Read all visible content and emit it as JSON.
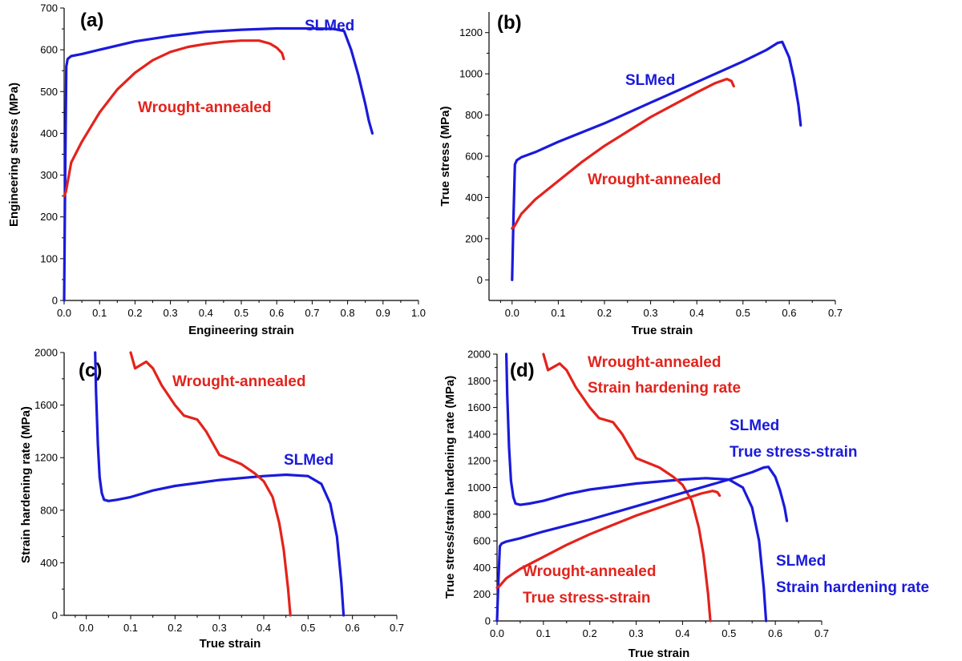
{
  "colors": {
    "slmed": "#1a1adb",
    "wrought": "#e3231c",
    "axis": "#000000"
  },
  "chart_data": [
    {
      "id": "a",
      "type": "line",
      "panel_label": "(a)",
      "xlabel": "Engineering strain",
      "ylabel": "Engineering stress (MPa)",
      "xlim": [
        0.0,
        1.0
      ],
      "ylim": [
        0,
        700
      ],
      "xticks": [
        "0.0",
        "0.1",
        "0.2",
        "0.3",
        "0.4",
        "0.5",
        "0.6",
        "0.7",
        "0.8",
        "0.9",
        "1.0"
      ],
      "yticks": [
        "0",
        "100",
        "200",
        "300",
        "400",
        "500",
        "600",
        "700"
      ],
      "series": [
        {
          "key": "slmed",
          "x": [
            0,
            0.003,
            0.006,
            0.01,
            0.02,
            0.05,
            0.1,
            0.2,
            0.3,
            0.4,
            0.5,
            0.6,
            0.7,
            0.76,
            0.79,
            0.81,
            0.83,
            0.85,
            0.86,
            0.87
          ],
          "y": [
            0,
            300,
            560,
            578,
            585,
            590,
            600,
            620,
            633,
            643,
            648,
            651,
            651,
            650,
            645,
            600,
            540,
            470,
            430,
            400
          ]
        },
        {
          "key": "wrought",
          "x": [
            0,
            0.005,
            0.02,
            0.05,
            0.1,
            0.15,
            0.2,
            0.25,
            0.3,
            0.35,
            0.4,
            0.45,
            0.5,
            0.55,
            0.58,
            0.6,
            0.615,
            0.62
          ],
          "y": [
            250,
            260,
            330,
            380,
            450,
            505,
            545,
            575,
            595,
            607,
            614,
            619,
            622,
            622,
            615,
            605,
            592,
            578
          ]
        }
      ],
      "annotations": [
        {
          "series": "slmed",
          "lines": [
            "SLMed"
          ]
        },
        {
          "series": "wrought",
          "lines": [
            "Wrought-annealed"
          ]
        }
      ]
    },
    {
      "id": "b",
      "type": "line",
      "panel_label": "(b)",
      "xlabel": "True strain",
      "ylabel": "True stress (MPa)",
      "xlim": [
        -0.05,
        0.7
      ],
      "ylim": [
        -100,
        1300
      ],
      "xticks": [
        "0.0",
        "0.1",
        "0.2",
        "0.3",
        "0.4",
        "0.5",
        "0.6",
        "0.7"
      ],
      "yticks": [
        "0",
        "200",
        "400",
        "600",
        "800",
        "1000",
        "1200"
      ],
      "series": [
        {
          "key": "slmed",
          "x": [
            0,
            0.003,
            0.006,
            0.01,
            0.02,
            0.05,
            0.1,
            0.2,
            0.3,
            0.4,
            0.5,
            0.55,
            0.575,
            0.585,
            0.6,
            0.61,
            0.62,
            0.625
          ],
          "y": [
            0,
            300,
            560,
            580,
            595,
            620,
            670,
            760,
            860,
            960,
            1060,
            1115,
            1150,
            1155,
            1080,
            980,
            850,
            750
          ]
        },
        {
          "key": "wrought",
          "x": [
            0,
            0.005,
            0.02,
            0.05,
            0.1,
            0.15,
            0.2,
            0.25,
            0.3,
            0.35,
            0.4,
            0.44,
            0.465,
            0.475,
            0.48
          ],
          "y": [
            250,
            260,
            320,
            390,
            480,
            570,
            650,
            720,
            790,
            850,
            910,
            955,
            975,
            965,
            940
          ]
        }
      ],
      "annotations": [
        {
          "series": "slmed",
          "lines": [
            "SLMed"
          ]
        },
        {
          "series": "wrought",
          "lines": [
            "Wrought-annealed"
          ]
        }
      ]
    },
    {
      "id": "c",
      "type": "line",
      "panel_label": "(c)",
      "xlabel": "True strain",
      "ylabel": "Strain hardening rate (MPa)",
      "xlim": [
        -0.05,
        0.7
      ],
      "ylim": [
        0,
        2000
      ],
      "xticks": [
        "0.0",
        "0.1",
        "0.2",
        "0.3",
        "0.4",
        "0.5",
        "0.6",
        "0.7"
      ],
      "yticks": [
        "0",
        "400",
        "800",
        "1200",
        "1600",
        "2000"
      ],
      "series": [
        {
          "key": "slmed",
          "x": [
            0.02,
            0.022,
            0.026,
            0.03,
            0.035,
            0.04,
            0.05,
            0.07,
            0.1,
            0.15,
            0.2,
            0.3,
            0.4,
            0.45,
            0.5,
            0.53,
            0.55,
            0.565,
            0.575,
            0.58
          ],
          "y": [
            2000,
            1700,
            1300,
            1050,
            930,
            880,
            870,
            880,
            900,
            950,
            985,
            1030,
            1060,
            1070,
            1060,
            1000,
            850,
            600,
            250,
            0
          ]
        },
        {
          "key": "wrought",
          "x": [
            0.1,
            0.11,
            0.12,
            0.135,
            0.15,
            0.17,
            0.2,
            0.22,
            0.25,
            0.27,
            0.3,
            0.35,
            0.38,
            0.4,
            0.42,
            0.435,
            0.445,
            0.455,
            0.46
          ],
          "y": [
            2000,
            1880,
            1900,
            1930,
            1880,
            1750,
            1600,
            1520,
            1490,
            1400,
            1220,
            1150,
            1080,
            1020,
            900,
            700,
            500,
            200,
            0
          ]
        }
      ],
      "annotations": [
        {
          "series": "slmed",
          "lines": [
            "SLMed"
          ]
        },
        {
          "series": "wrought",
          "lines": [
            "Wrought-annealed"
          ]
        }
      ]
    },
    {
      "id": "d",
      "type": "line",
      "panel_label": "(d)",
      "xlabel": "True strain",
      "ylabel": "True stress/strain hardening rate (MPa)",
      "xlim": [
        0.0,
        0.7
      ],
      "ylim": [
        0,
        2000
      ],
      "xticks": [
        "0.0",
        "0.1",
        "0.2",
        "0.3",
        "0.4",
        "0.5",
        "0.6",
        "0.7"
      ],
      "yticks": [
        "0",
        "200",
        "400",
        "600",
        "800",
        "1000",
        "1200",
        "1400",
        "1600",
        "1800",
        "2000"
      ],
      "series": [
        {
          "key": "slmed",
          "x": [
            0.02,
            0.022,
            0.026,
            0.03,
            0.035,
            0.04,
            0.05,
            0.07,
            0.1,
            0.15,
            0.2,
            0.3,
            0.4,
            0.45,
            0.5,
            0.53,
            0.55,
            0.565,
            0.575,
            0.58
          ],
          "y": [
            2000,
            1700,
            1300,
            1050,
            930,
            880,
            870,
            880,
            900,
            950,
            985,
            1030,
            1060,
            1070,
            1060,
            1000,
            850,
            600,
            250,
            0
          ]
        },
        {
          "key": "wrought",
          "x": [
            0.1,
            0.11,
            0.12,
            0.135,
            0.15,
            0.17,
            0.2,
            0.22,
            0.25,
            0.27,
            0.3,
            0.35,
            0.38,
            0.4,
            0.42,
            0.435,
            0.445,
            0.455,
            0.46
          ],
          "y": [
            2000,
            1880,
            1900,
            1930,
            1880,
            1750,
            1600,
            1520,
            1490,
            1400,
            1220,
            1150,
            1080,
            1020,
            900,
            700,
            500,
            200,
            0
          ]
        },
        {
          "key": "slmed",
          "x": [
            0,
            0.003,
            0.006,
            0.01,
            0.02,
            0.05,
            0.1,
            0.2,
            0.3,
            0.4,
            0.5,
            0.55,
            0.575,
            0.585,
            0.6,
            0.61,
            0.62,
            0.625
          ],
          "y": [
            0,
            300,
            560,
            580,
            595,
            620,
            670,
            760,
            860,
            960,
            1060,
            1115,
            1150,
            1155,
            1080,
            980,
            850,
            750
          ]
        },
        {
          "key": "wrought",
          "x": [
            0,
            0.005,
            0.02,
            0.05,
            0.1,
            0.15,
            0.2,
            0.25,
            0.3,
            0.35,
            0.4,
            0.44,
            0.465,
            0.475,
            0.48
          ],
          "y": [
            250,
            260,
            320,
            390,
            480,
            570,
            650,
            720,
            790,
            850,
            910,
            955,
            975,
            965,
            940
          ]
        }
      ],
      "annotations": [
        {
          "series": "wrought",
          "lines": [
            "Wrought-annealed",
            "Strain hardening rate"
          ]
        },
        {
          "series": "slmed",
          "lines": [
            "SLMed",
            "True stress-strain"
          ]
        },
        {
          "series": "wrought",
          "lines": [
            "Wrought-annealed",
            "True stress-strain"
          ]
        },
        {
          "series": "slmed",
          "lines": [
            "SLMed",
            "Strain hardening rate"
          ]
        }
      ]
    }
  ]
}
